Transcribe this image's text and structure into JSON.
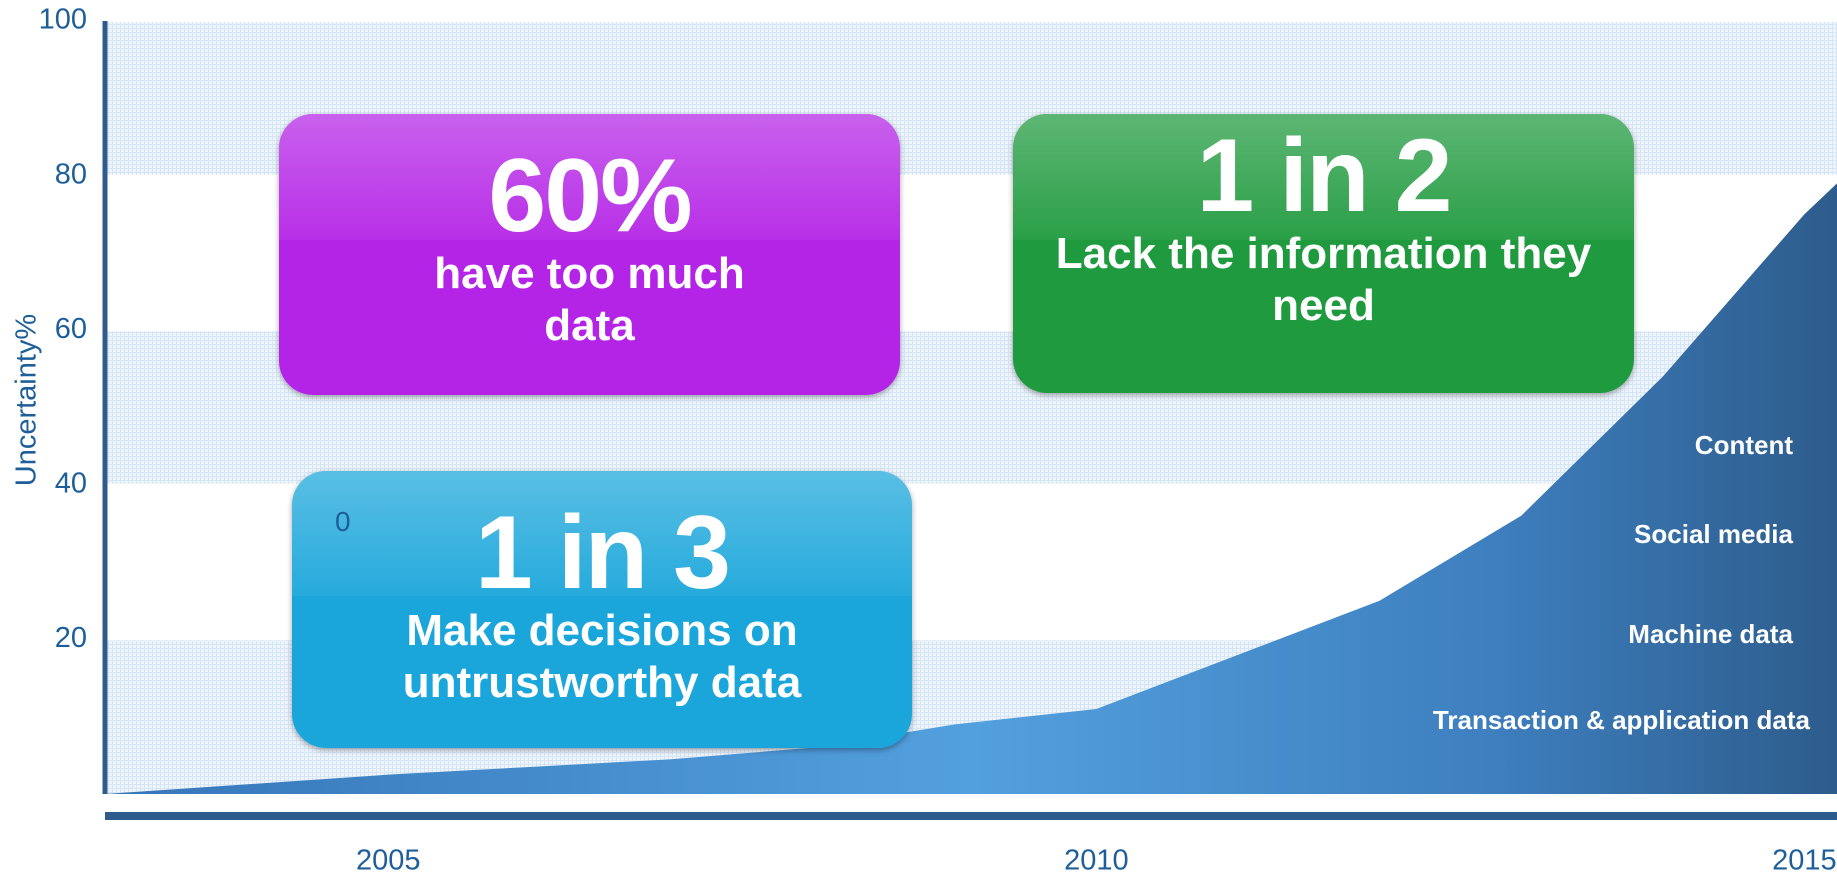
{
  "chart_data": {
    "type": "area",
    "ylabel": "Uncertainty%",
    "x": [
      2003,
      2005,
      2006,
      2007,
      2008,
      2009,
      2010,
      2011,
      2012,
      2013,
      2014,
      2015,
      2015.23
    ],
    "values": [
      0,
      2.5,
      3.5,
      4.5,
      6,
      9,
      11,
      18,
      25,
      36,
      54,
      75,
      79
    ],
    "xlim": [
      2003,
      2015.23
    ],
    "xticks": [
      2005,
      2010,
      2015
    ],
    "ylim": [
      0,
      100
    ],
    "yticks": [
      20,
      40,
      60,
      80,
      100
    ],
    "grid": true,
    "area_labels": [
      "Content",
      "Social media",
      "Machine data",
      "Transaction & application data"
    ],
    "annotations": [
      {
        "headline": "60%",
        "text": "have too much data",
        "color": "#b424e6"
      },
      {
        "headline": "1 in 2",
        "text": "Lack the information they need",
        "color": "#1f9a3e"
      },
      {
        "headline": "1 in 3",
        "text": "Make decisions on untrustworthy data",
        "color": "#1aa6da"
      }
    ],
    "stray_label": "0"
  }
}
